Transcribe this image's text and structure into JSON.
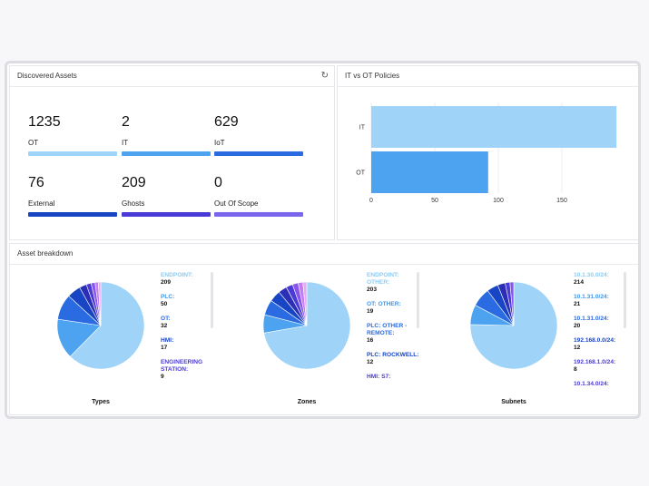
{
  "discovered": {
    "title": "Discovered Assets",
    "refresh_icon": "refresh-icon",
    "stats": [
      {
        "value": "1235",
        "label": "OT",
        "color": "#9fd3f7"
      },
      {
        "value": "2",
        "label": "IT",
        "color": "#4da3ef"
      },
      {
        "value": "629",
        "label": "IoT",
        "color": "#2a6be2"
      },
      {
        "value": "76",
        "label": "External",
        "color": "#1845c4"
      },
      {
        "value": "209",
        "label": "Ghosts",
        "color": "#4a3bd6"
      },
      {
        "value": "0",
        "label": "Out Of Scope",
        "color": "#7a66ec"
      }
    ]
  },
  "policies": {
    "title": "IT vs OT Policies",
    "chart_data": {
      "type": "bar",
      "orientation": "horizontal",
      "categories": [
        "IT",
        "OT"
      ],
      "values": [
        193,
        92
      ],
      "colors": [
        "#9fd3f7",
        "#4da3ef"
      ],
      "xticks": [
        "0",
        "50",
        "100",
        "150"
      ],
      "xlim": [
        0,
        200
      ],
      "grid": true
    }
  },
  "breakdown": {
    "title": "Asset breakdown",
    "charts": [
      {
        "title": "Types",
        "legend": [
          {
            "label": "ENDPOINT:",
            "value": "209",
            "color": "#8ccbf5"
          },
          {
            "label": "PLC:",
            "value": "50",
            "color": "#3d97ec"
          },
          {
            "label": "OT:",
            "value": "32",
            "color": "#2a6be2"
          },
          {
            "label": "HMI:",
            "value": "17",
            "color": "#1845c4"
          },
          {
            "label": "ENGINEERING STATION:",
            "value": "9",
            "color": "#4a3bd6"
          }
        ]
      },
      {
        "title": "Zones",
        "legend": [
          {
            "label": "ENDPOINT: OTHER:",
            "value": "203",
            "color": "#8ccbf5"
          },
          {
            "label": "OT: OTHER:",
            "value": "19",
            "color": "#3d97ec"
          },
          {
            "label": "PLC: OTHER - REMOTE:",
            "value": "16",
            "color": "#2a6be2"
          },
          {
            "label": "PLC: ROCKWELL:",
            "value": "12",
            "color": "#1845c4"
          },
          {
            "label": "HMI: S7:",
            "value": "",
            "color": "#4a3bd6"
          }
        ]
      },
      {
        "title": "Subnets",
        "legend": [
          {
            "label": "10.1.30.0/24:",
            "value": "214",
            "color": "#8ccbf5"
          },
          {
            "label": "10.1.31.0/24:",
            "value": "21",
            "color": "#3d97ec"
          },
          {
            "label": "10.1.31.0/24:",
            "value": "20",
            "color": "#2a6be2"
          },
          {
            "label": "192.168.0.0/24:",
            "value": "12",
            "color": "#1845c4"
          },
          {
            "label": "192.168.1.0/24:",
            "value": "8",
            "color": "#4a3bd6"
          },
          {
            "label": "10.1.34.0/24:",
            "value": "",
            "color": "#4a3bd6"
          }
        ]
      }
    ],
    "chart_data": [
      {
        "type": "pie",
        "title": "Types",
        "values": [
          209,
          50,
          32,
          17,
          9,
          6,
          5,
          4,
          3
        ],
        "colors": [
          "#9fd3f7",
          "#4da3ef",
          "#2a6be2",
          "#1845c4",
          "#2b2fb6",
          "#4a3bd6",
          "#8a55ee",
          "#c27cf5",
          "#e9a8f8"
        ]
      },
      {
        "type": "pie",
        "title": "Zones",
        "values": [
          203,
          19,
          16,
          12,
          9,
          7,
          6,
          5,
          4
        ],
        "colors": [
          "#9fd3f7",
          "#4da3ef",
          "#2a6be2",
          "#1845c4",
          "#2b2fb6",
          "#4a3bd6",
          "#8a55ee",
          "#c27cf5",
          "#e9a8f8"
        ]
      },
      {
        "type": "pie",
        "title": "Subnets",
        "values": [
          214,
          21,
          20,
          12,
          8,
          5,
          4
        ],
        "colors": [
          "#9fd3f7",
          "#4da3ef",
          "#2a6be2",
          "#1845c4",
          "#2b2fb6",
          "#4a3bd6",
          "#8a55ee"
        ]
      }
    ]
  }
}
